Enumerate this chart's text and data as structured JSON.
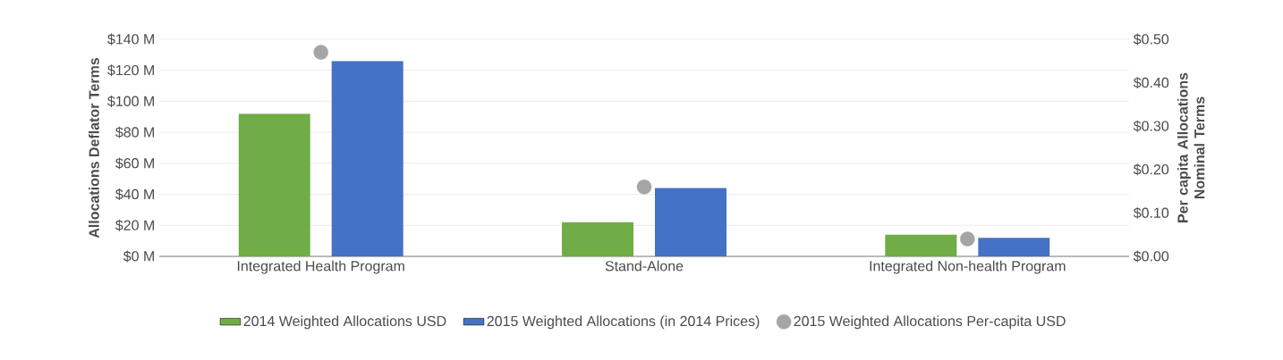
{
  "chart_data": {
    "type": "bar",
    "categories": [
      "Integrated Health Program",
      "Stand-Alone",
      "Integrated Non-health Program"
    ],
    "series": [
      {
        "name": "2014 Weighted Allocations USD",
        "color": "#70ad47",
        "values": [
          92,
          22,
          14
        ]
      },
      {
        "name": "2015 Weighted Allocations (in 2014 Prices)",
        "color": "#4472c4",
        "values": [
          126,
          44,
          12
        ]
      },
      {
        "name": "2015 Weighted Allocations Per-capita USD",
        "color": "#a5a5a5",
        "type": "scatter",
        "axis": "y2",
        "values": [
          0.47,
          0.16,
          0.04
        ]
      }
    ],
    "ylabel": "Allocations Deflator Terms",
    "y2label": "Per capita Allocations Nominal Terms",
    "ylim": [
      0,
      140
    ],
    "yticks": [
      {
        "value": 0,
        "label": "$0 M"
      },
      {
        "value": 20,
        "label": "$20 M"
      },
      {
        "value": 40,
        "label": "$40 M"
      },
      {
        "value": 60,
        "label": "$60 M"
      },
      {
        "value": 80,
        "label": "$80 M"
      },
      {
        "value": 100,
        "label": "$100 M"
      },
      {
        "value": 120,
        "label": "$120 M"
      },
      {
        "value": 140,
        "label": "$140 M"
      }
    ],
    "y2lim": [
      0,
      0.5
    ],
    "y2ticks": [
      {
        "value": 0,
        "label": "$0.00"
      },
      {
        "value": 0.1,
        "label": "$0.10"
      },
      {
        "value": 0.2,
        "label": "$0.20"
      },
      {
        "value": 0.3,
        "label": "$0.30"
      },
      {
        "value": 0.4,
        "label": "$0.40"
      },
      {
        "value": 0.5,
        "label": "$0.50"
      }
    ],
    "grid": "y",
    "legend": "bottom"
  }
}
